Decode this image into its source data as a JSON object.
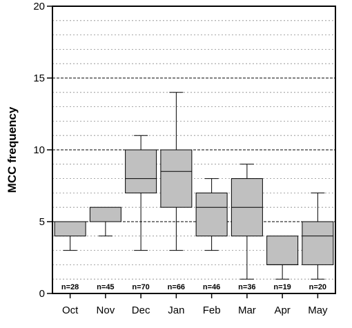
{
  "chart_data": {
    "type": "boxplot",
    "title": "",
    "xlabel": "",
    "ylabel": "MCC frequency",
    "ylim": [
      0,
      20
    ],
    "yticks": [
      0,
      5,
      10,
      15,
      20
    ],
    "grid": {
      "major": true,
      "minor": true,
      "minor_step": 1
    },
    "categories": [
      "Oct",
      "Nov",
      "Dec",
      "Jan",
      "Feb",
      "Mar",
      "Apr",
      "May"
    ],
    "boxes": [
      {
        "category": "Oct",
        "n_label": "n=28",
        "whisker_low": 3,
        "q1": 4,
        "median": 5,
        "q3": 5,
        "whisker_high": 5
      },
      {
        "category": "Nov",
        "n_label": "n=45",
        "whisker_low": 4,
        "q1": 5,
        "median": 5,
        "q3": 6,
        "whisker_high": 6
      },
      {
        "category": "Dec",
        "n_label": "n=70",
        "whisker_low": 3,
        "q1": 7,
        "median": 8,
        "q3": 10,
        "whisker_high": 11
      },
      {
        "category": "Jan",
        "n_label": "n=66",
        "whisker_low": 3,
        "q1": 6,
        "median": 8.5,
        "q3": 10,
        "whisker_high": 14
      },
      {
        "category": "Feb",
        "n_label": "n=46",
        "whisker_low": 3,
        "q1": 4,
        "median": 6,
        "q3": 7,
        "whisker_high": 8
      },
      {
        "category": "Mar",
        "n_label": "n=36",
        "whisker_low": 1,
        "q1": 4,
        "median": 6,
        "q3": 8,
        "whisker_high": 9
      },
      {
        "category": "Apr",
        "n_label": "n=19",
        "whisker_low": 1,
        "q1": 2,
        "median": 2,
        "q3": 4,
        "whisker_high": 4
      },
      {
        "category": "May",
        "n_label": "n=20",
        "whisker_low": 1,
        "q1": 2,
        "median": 4,
        "q3": 5,
        "whisker_high": 7
      }
    ],
    "colors": {
      "box_fill": "#c0c0c0",
      "stroke": "#000000",
      "minor_grid": "#888888"
    }
  }
}
